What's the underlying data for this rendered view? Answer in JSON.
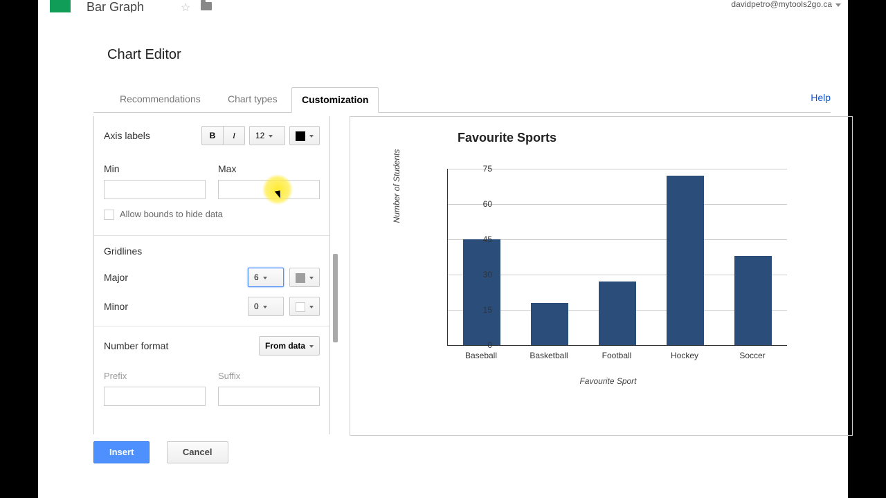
{
  "doc_title": "Bar Graph",
  "account_email": "davidpetro@mytools2go.ca",
  "dialog_title": "Chart Editor",
  "tabs": {
    "rec": "Recommendations",
    "types": "Chart types",
    "custom": "Customization"
  },
  "help_label": "Help",
  "panel": {
    "axis_labels": "Axis labels",
    "font_size": "12",
    "axis_color": "#000000",
    "min_label": "Min",
    "max_label": "Max",
    "min_val": "",
    "max_val": "",
    "allow_bounds": "Allow bounds to hide data",
    "gridlines": "Gridlines",
    "major_label": "Major",
    "major_val": "6",
    "major_color": "#9e9e9e",
    "minor_label": "Minor",
    "minor_val": "0",
    "minor_color": "#ffffff",
    "numfmt": "Number format",
    "numfmt_val": "From data",
    "prefix": "Prefix",
    "suffix": "Suffix"
  },
  "buttons": {
    "insert": "Insert",
    "cancel": "Cancel"
  },
  "chart": {
    "type": "bar",
    "title": "Favourite Sports",
    "title_fontsize": 18,
    "ylabel": "Number of Students",
    "xlabel": "Favourite Sport",
    "label_fontsize": 12,
    "ylim": [
      0,
      75
    ],
    "ytick_step": 15,
    "yticks": [
      0,
      15,
      30,
      45,
      60,
      75
    ],
    "categories": [
      "Baseball",
      "Basketball",
      "Football",
      "Hockey",
      "Soccer"
    ],
    "values": [
      45,
      18,
      27,
      72,
      38
    ],
    "bar_color": "#2a4d7a",
    "bar_width": 0.55,
    "background_color": "#ffffff",
    "grid_color": "#cccccc",
    "axis_color": "#333333"
  }
}
